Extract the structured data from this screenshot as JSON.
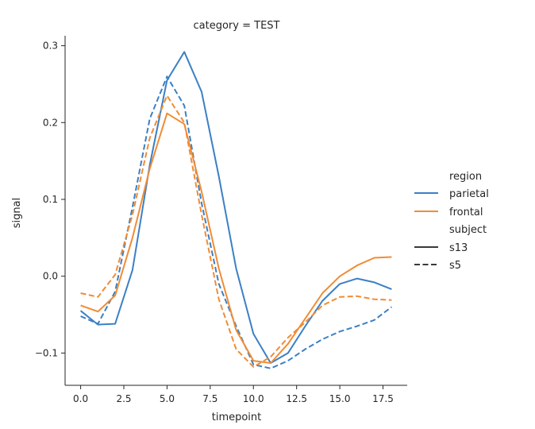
{
  "chart_data": {
    "type": "line",
    "title": "category = TEST",
    "xlabel": "timepoint",
    "ylabel": "signal",
    "xlim": [
      -0.9,
      18.9
    ],
    "ylim": [
      -0.142,
      0.313
    ],
    "xticks": [
      0,
      2.5,
      5,
      7.5,
      10,
      12.5,
      15,
      17.5
    ],
    "xtick_labels": [
      "0.0",
      "2.5",
      "5.0",
      "7.5",
      "10.0",
      "12.5",
      "15.0",
      "17.5"
    ],
    "yticks": [
      -0.1,
      0,
      0.1,
      0.2,
      0.3
    ],
    "ytick_labels": [
      "−0.1",
      "0.0",
      "0.1",
      "0.2",
      "0.3"
    ],
    "grid": false,
    "legend_position": "right",
    "legend": {
      "hue_title": "region",
      "hue_entries": [
        {
          "label": "parietal",
          "color": "#3b80c4"
        },
        {
          "label": "frontal",
          "color": "#f08c35"
        }
      ],
      "style_title": "subject",
      "style_entries": [
        {
          "label": "s13",
          "dash": "solid"
        },
        {
          "label": "s5",
          "dash": "dashed"
        }
      ]
    },
    "x": [
      0,
      1,
      2,
      3,
      4,
      5,
      6,
      7,
      8,
      9,
      10,
      11,
      12,
      13,
      14,
      15,
      16,
      17,
      18
    ],
    "series": [
      {
        "region": "parietal",
        "subject": "s13",
        "color": "#3b80c4",
        "dash": "solid",
        "values": [
          -0.045,
          -0.063,
          -0.062,
          0.008,
          0.145,
          0.255,
          0.292,
          0.24,
          0.13,
          0.01,
          -0.075,
          -0.113,
          -0.1,
          -0.065,
          -0.032,
          -0.01,
          -0.003,
          -0.008,
          -0.017
        ]
      },
      {
        "region": "parietal",
        "subject": "s5",
        "color": "#3b80c4",
        "dash": "dashed",
        "values": [
          -0.052,
          -0.062,
          -0.02,
          0.09,
          0.205,
          0.26,
          0.222,
          0.095,
          -0.01,
          -0.065,
          -0.115,
          -0.12,
          -0.11,
          -0.095,
          -0.082,
          -0.072,
          -0.065,
          -0.057,
          -0.04
        ]
      },
      {
        "region": "frontal",
        "subject": "s13",
        "color": "#f08c35",
        "dash": "solid",
        "values": [
          -0.038,
          -0.046,
          -0.025,
          0.05,
          0.14,
          0.212,
          0.198,
          0.11,
          0.01,
          -0.07,
          -0.11,
          -0.113,
          -0.088,
          -0.055,
          -0.022,
          0.0,
          0.014,
          0.024,
          0.025
        ]
      },
      {
        "region": "frontal",
        "subject": "s5",
        "color": "#f08c35",
        "dash": "dashed",
        "values": [
          -0.022,
          -0.027,
          0.002,
          0.08,
          0.18,
          0.235,
          0.2,
          0.08,
          -0.03,
          -0.095,
          -0.118,
          -0.105,
          -0.08,
          -0.06,
          -0.038,
          -0.027,
          -0.026,
          -0.03,
          -0.031
        ]
      }
    ]
  }
}
